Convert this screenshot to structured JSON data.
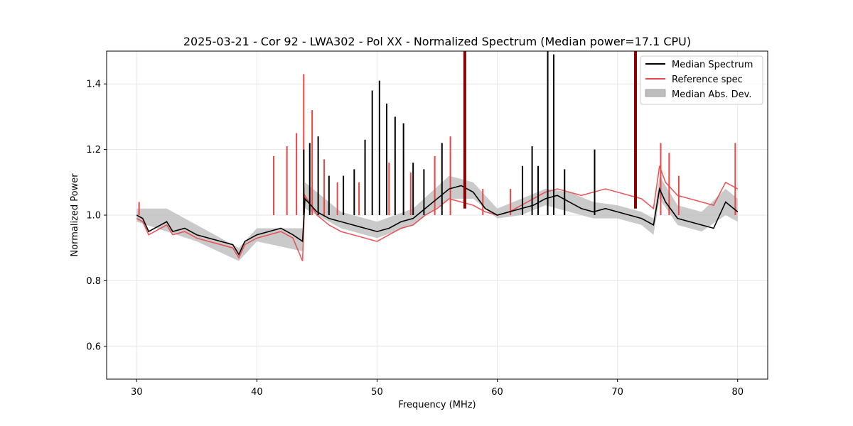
{
  "chart_data": {
    "type": "line",
    "title": "2025-03-21 - Cor 92 - LWA302 - Pol XX - Normalized Spectrum (Median power=17.1 CPU)",
    "xlabel": "Frequency (MHz)",
    "ylabel": "Normalized Power",
    "xlim": [
      27.5,
      82.5
    ],
    "ylim": [
      0.5,
      1.5
    ],
    "x_ticks": [
      30,
      40,
      50,
      60,
      70,
      80
    ],
    "y_ticks": [
      0.6,
      0.8,
      1.0,
      1.2,
      1.4
    ],
    "x_tick_labels": [
      "30",
      "40",
      "50",
      "60",
      "70",
      "80"
    ],
    "y_tick_labels": [
      "0.6",
      "0.8",
      "1.0",
      "1.2",
      "1.4"
    ],
    "grid": true,
    "legend_position": "top-right",
    "colors": {
      "median": "#000000",
      "reference": "#e8474a",
      "mad_fill": "#bdbdbd",
      "rfi_marker": "#8b0000"
    },
    "series": [
      {
        "name": "Median Spectrum",
        "style": "line",
        "x": [
          30.0,
          30.5,
          31.0,
          31.5,
          32.0,
          32.5,
          33.0,
          34.0,
          35.0,
          36.0,
          37.0,
          38.0,
          38.5,
          39.0,
          40.0,
          41.0,
          42.0,
          43.0,
          43.8,
          44.0,
          45.0,
          46.0,
          47.0,
          48.0,
          49.0,
          50.0,
          51.0,
          52.0,
          53.0,
          54.0,
          55.0,
          56.0,
          57.0,
          58.0,
          59.0,
          60.0,
          61.0,
          62.0,
          63.0,
          64.0,
          65.0,
          66.0,
          67.0,
          68.0,
          69.0,
          70.0,
          71.0,
          72.0,
          73.0,
          73.5,
          74.0,
          75.0,
          76.0,
          77.0,
          78.0,
          79.0,
          80.0
        ],
        "values": [
          1.0,
          0.99,
          0.95,
          0.96,
          0.97,
          0.98,
          0.95,
          0.96,
          0.94,
          0.93,
          0.92,
          0.91,
          0.88,
          0.92,
          0.94,
          0.95,
          0.96,
          0.94,
          0.92,
          1.05,
          1.01,
          0.99,
          0.98,
          0.97,
          0.96,
          0.95,
          0.96,
          0.98,
          0.99,
          1.02,
          1.05,
          1.08,
          1.09,
          1.07,
          1.02,
          1.0,
          1.01,
          1.02,
          1.03,
          1.05,
          1.06,
          1.04,
          1.02,
          1.01,
          1.02,
          1.01,
          1.0,
          0.99,
          0.97,
          1.08,
          1.04,
          0.99,
          0.98,
          0.97,
          0.96,
          1.04,
          1.01
        ]
      },
      {
        "name": "Reference spec",
        "style": "line",
        "x": [
          30.0,
          30.5,
          31.0,
          31.5,
          32.0,
          32.5,
          33.0,
          34.0,
          35.0,
          36.0,
          37.0,
          38.0,
          38.5,
          39.0,
          40.0,
          41.0,
          42.0,
          43.0,
          43.8,
          44.0,
          45.0,
          46.0,
          47.0,
          48.0,
          49.0,
          50.0,
          51.0,
          52.0,
          53.0,
          54.0,
          55.0,
          56.0,
          57.0,
          58.0,
          59.0,
          60.0,
          61.0,
          62.0,
          63.0,
          64.0,
          65.0,
          66.0,
          67.0,
          68.0,
          69.0,
          70.0,
          71.0,
          72.0,
          73.0,
          73.5,
          74.0,
          75.0,
          76.0,
          77.0,
          78.0,
          79.0,
          80.0
        ],
        "values": [
          0.99,
          0.98,
          0.94,
          0.95,
          0.96,
          0.97,
          0.94,
          0.95,
          0.93,
          0.92,
          0.91,
          0.9,
          0.87,
          0.91,
          0.93,
          0.94,
          0.95,
          0.93,
          0.86,
          1.06,
          1.0,
          0.97,
          0.95,
          0.94,
          0.93,
          0.92,
          0.94,
          0.96,
          0.97,
          1.0,
          1.02,
          1.05,
          1.04,
          1.03,
          1.01,
          1.0,
          1.01,
          1.03,
          1.05,
          1.07,
          1.08,
          1.07,
          1.06,
          1.07,
          1.08,
          1.07,
          1.06,
          1.05,
          1.02,
          1.15,
          1.1,
          1.06,
          1.05,
          1.04,
          1.03,
          1.1,
          1.08
        ]
      },
      {
        "name": "Median Abs. Dev.",
        "style": "band",
        "x": [
          30.0,
          32.5,
          35.0,
          38.5,
          40.0,
          43.8,
          44.0,
          47.0,
          50.0,
          53.0,
          56.0,
          58.0,
          60.0,
          62.0,
          64.0,
          66.0,
          68.0,
          70.0,
          72.0,
          73.0,
          73.5,
          75.0,
          77.0,
          79.0,
          80.0
        ],
        "lower": [
          0.98,
          0.95,
          0.92,
          0.86,
          0.92,
          0.89,
          1.02,
          0.96,
          0.93,
          0.97,
          1.05,
          1.05,
          0.99,
          1.0,
          1.03,
          1.01,
          0.99,
          0.99,
          0.97,
          0.94,
          1.05,
          0.97,
          0.95,
          1.0,
          0.98
        ],
        "upper": [
          1.02,
          1.02,
          0.97,
          0.9,
          0.96,
          0.96,
          1.1,
          1.01,
          0.98,
          1.02,
          1.12,
          1.1,
          1.02,
          1.05,
          1.08,
          1.07,
          1.04,
          1.03,
          1.01,
          0.99,
          1.12,
          1.03,
          1.01,
          1.08,
          1.05
        ]
      }
    ],
    "median_spikes": [
      {
        "x": 43.9,
        "top": 1.2
      },
      {
        "x": 44.4,
        "top": 1.22
      },
      {
        "x": 45.1,
        "top": 1.24
      },
      {
        "x": 46.0,
        "top": 1.12
      },
      {
        "x": 47.2,
        "top": 1.12
      },
      {
        "x": 48.1,
        "top": 1.14
      },
      {
        "x": 49.0,
        "top": 1.23
      },
      {
        "x": 49.6,
        "top": 1.38
      },
      {
        "x": 50.2,
        "top": 1.41
      },
      {
        "x": 50.8,
        "top": 1.34
      },
      {
        "x": 51.5,
        "top": 1.3
      },
      {
        "x": 52.2,
        "top": 1.28
      },
      {
        "x": 53.0,
        "top": 1.16
      },
      {
        "x": 53.9,
        "top": 1.14
      },
      {
        "x": 55.4,
        "top": 1.22
      },
      {
        "x": 62.1,
        "top": 1.15
      },
      {
        "x": 62.9,
        "top": 1.21
      },
      {
        "x": 63.4,
        "top": 1.15
      },
      {
        "x": 64.2,
        "top": 1.5
      },
      {
        "x": 64.7,
        "top": 1.49
      },
      {
        "x": 65.6,
        "top": 1.14
      },
      {
        "x": 68.1,
        "top": 1.2
      }
    ],
    "reference_spikes": [
      {
        "x": 30.2,
        "top": 1.04
      },
      {
        "x": 41.4,
        "top": 1.18
      },
      {
        "x": 42.5,
        "top": 1.21
      },
      {
        "x": 43.3,
        "top": 1.25
      },
      {
        "x": 43.9,
        "top": 1.43
      },
      {
        "x": 44.6,
        "top": 1.32
      },
      {
        "x": 45.6,
        "top": 1.17
      },
      {
        "x": 46.7,
        "top": 1.1
      },
      {
        "x": 48.5,
        "top": 1.1
      },
      {
        "x": 51.0,
        "top": 1.16
      },
      {
        "x": 52.8,
        "top": 1.13
      },
      {
        "x": 54.8,
        "top": 1.18
      },
      {
        "x": 56.1,
        "top": 1.24
      },
      {
        "x": 58.8,
        "top": 1.08
      },
      {
        "x": 61.1,
        "top": 1.08
      },
      {
        "x": 73.6,
        "top": 1.22
      },
      {
        "x": 74.3,
        "top": 1.19
      },
      {
        "x": 75.1,
        "top": 1.12
      },
      {
        "x": 79.8,
        "top": 1.22
      }
    ],
    "rfi_markers": [
      {
        "x": 57.3,
        "top": 1.5,
        "bottom": 1.02
      },
      {
        "x": 71.5,
        "top": 1.5,
        "bottom": 1.02
      }
    ],
    "legend": [
      {
        "label": "Median Spectrum",
        "swatch": "line",
        "color": "#000000"
      },
      {
        "label": "Reference spec",
        "swatch": "line",
        "color": "#e8474a"
      },
      {
        "label": "Median Abs. Dev.",
        "swatch": "patch",
        "color": "#bdbdbd"
      }
    ]
  }
}
